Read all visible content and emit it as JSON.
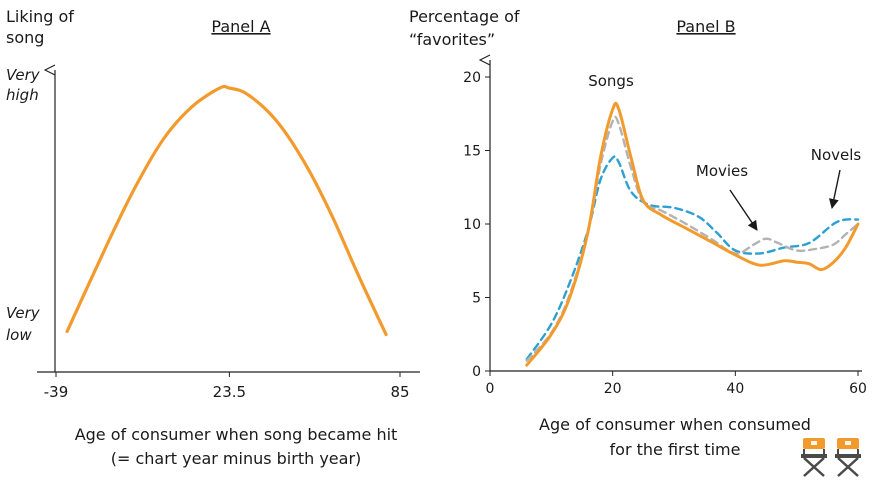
{
  "chart_data": [
    {
      "panel": "A",
      "type": "line",
      "title": "Panel A",
      "ylabel_lines": [
        "Liking of",
        "song"
      ],
      "xlabel_lines": [
        "Age of consumer when song became hit",
        "(= chart year minus birth year)"
      ],
      "y_annotations": {
        "top": [
          "Very",
          "high"
        ],
        "bottom": [
          "Very",
          "low"
        ]
      },
      "xticks": [
        "-39",
        "23.5",
        "85"
      ],
      "xlim": [
        -39,
        85
      ],
      "ylim": [
        0,
        1
      ],
      "grid": false,
      "series": [
        {
          "color": "#f39a2d",
          "x": [
            -35,
            -20,
            -10,
            0,
            10,
            20,
            23.5,
            30,
            40,
            50,
            60,
            70,
            80
          ],
          "y": [
            0.13,
            0.42,
            0.6,
            0.75,
            0.85,
            0.91,
            0.91,
            0.89,
            0.81,
            0.68,
            0.51,
            0.31,
            0.12
          ]
        }
      ]
    },
    {
      "panel": "B",
      "type": "line",
      "title": "Panel B",
      "ylabel_lines": [
        "Percentage of",
        "“favorites”"
      ],
      "xlabel_lines": [
        "Age of consumer when consumed",
        "for the first time"
      ],
      "xticks": [
        "0",
        "20",
        "40",
        "60"
      ],
      "yticks": [
        "0",
        "5",
        "10",
        "15",
        "20"
      ],
      "xlim": [
        0,
        60
      ],
      "ylim": [
        0,
        20
      ],
      "grid": false,
      "annotations": [
        {
          "text": "Songs",
          "arrow": false
        },
        {
          "text": "Movies",
          "arrow": true
        },
        {
          "text": "Novels",
          "arrow": true
        }
      ],
      "series": [
        {
          "name": "Songs",
          "color": "#f39a2d",
          "style": "solid",
          "x": [
            6,
            10,
            13,
            16,
            18,
            20,
            21,
            23,
            25,
            28,
            32,
            36,
            40,
            44,
            48,
            50,
            52,
            54,
            56,
            58,
            60
          ],
          "y": [
            0.4,
            2.5,
            5.0,
            9.5,
            14.5,
            17.8,
            17.8,
            14.5,
            11.6,
            10.6,
            9.7,
            8.8,
            7.9,
            7.2,
            7.5,
            7.4,
            7.3,
            6.9,
            7.4,
            8.4,
            10.0
          ]
        },
        {
          "name": "Movies",
          "color": "#b3b3b3",
          "style": "dashed",
          "x": [
            6,
            10,
            13,
            16,
            18,
            20,
            21,
            23,
            25,
            28,
            32,
            36,
            40,
            43,
            45,
            47,
            50,
            53,
            56,
            58,
            60
          ],
          "y": [
            0.7,
            2.6,
            5.2,
            9.5,
            14.0,
            17.0,
            16.8,
            13.8,
            11.5,
            10.9,
            10.0,
            9.0,
            8.0,
            8.6,
            9.0,
            8.7,
            8.2,
            8.3,
            8.6,
            9.3,
            10.0
          ]
        },
        {
          "name": "Novels",
          "color": "#2e9fd2",
          "style": "dashed",
          "x": [
            6,
            10,
            13,
            16,
            18,
            20,
            21,
            23,
            26,
            30,
            34,
            37,
            40,
            44,
            48,
            52,
            56,
            58,
            60
          ],
          "y": [
            0.8,
            3.2,
            6.0,
            9.6,
            13.0,
            14.5,
            14.2,
            12.2,
            11.3,
            11.1,
            10.5,
            9.4,
            8.2,
            8.0,
            8.4,
            8.7,
            10.0,
            10.3,
            10.3
          ]
        }
      ]
    }
  ],
  "decorations": [
    {
      "icon": "director-chair-icon",
      "color": "#f39a2d"
    },
    {
      "icon": "director-chair-icon",
      "color": "#f39a2d"
    }
  ]
}
